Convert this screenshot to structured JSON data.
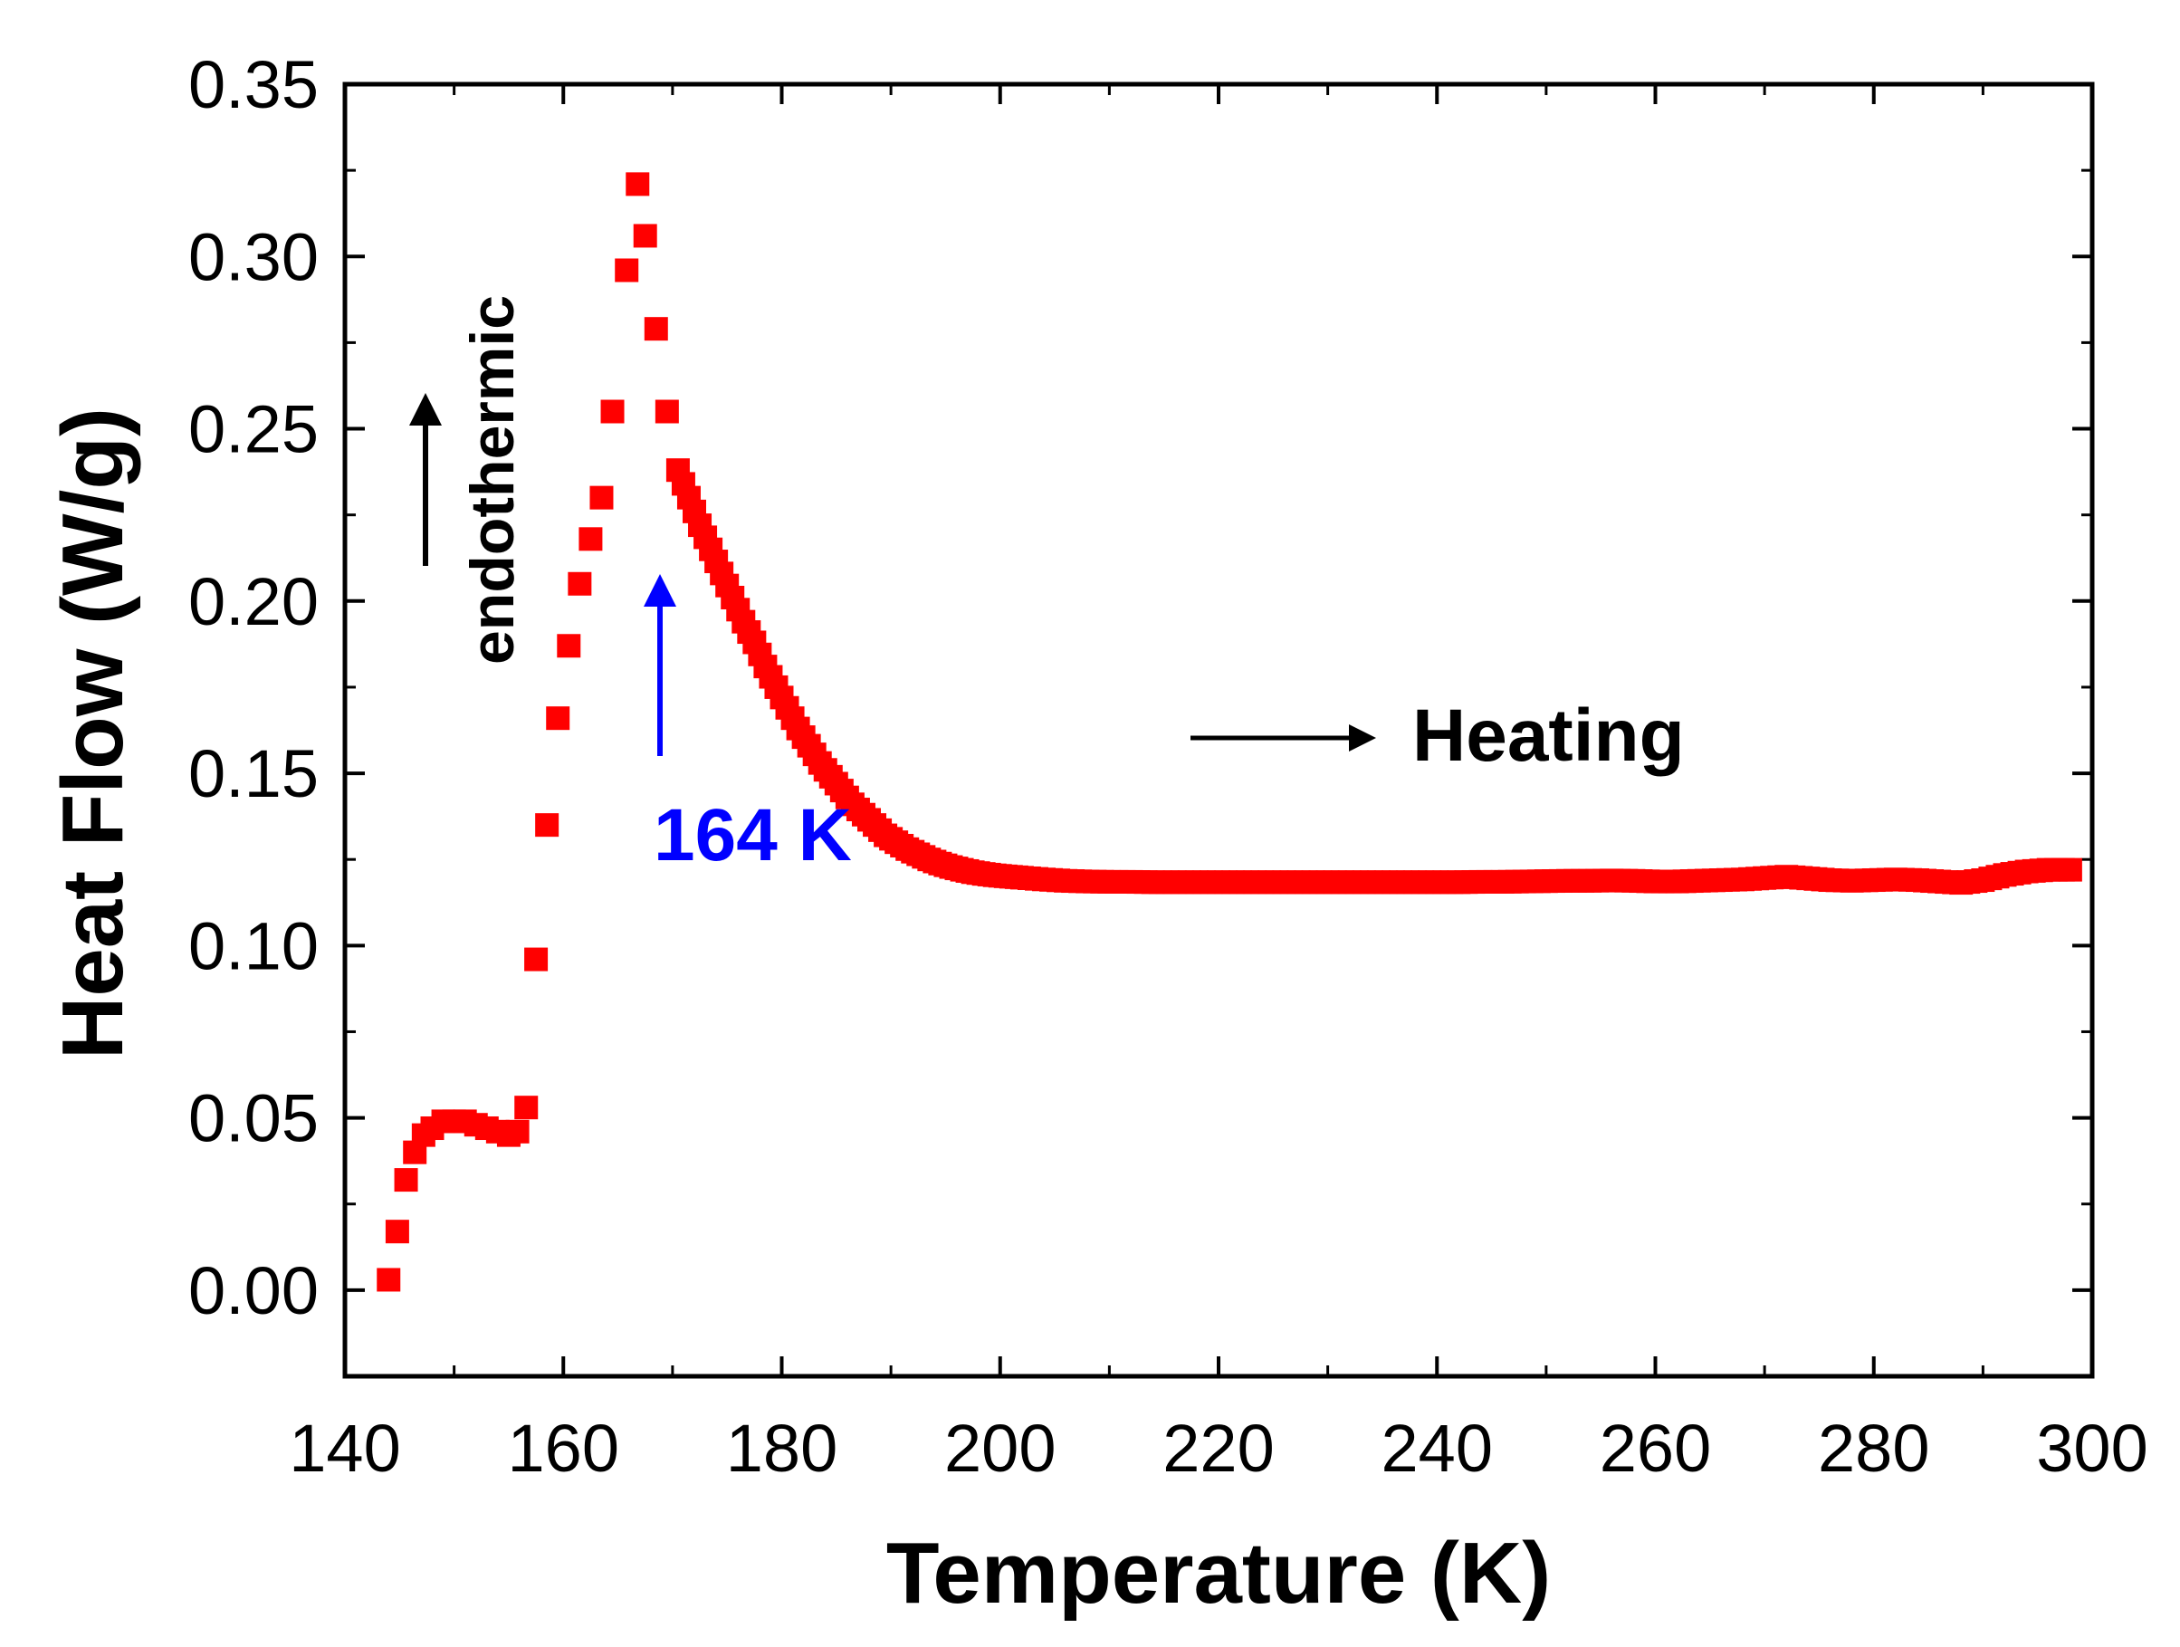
{
  "chart_data": {
    "type": "scatter",
    "title": "",
    "xlabel": "Temperature (K)",
    "ylabel": "Heat Flow (W/g)",
    "xlim": [
      140,
      300
    ],
    "ylim": [
      -0.025,
      0.35
    ],
    "xticks": [
      140,
      160,
      180,
      200,
      220,
      240,
      260,
      280,
      300
    ],
    "xtick_labels": [
      "140",
      "160",
      "180",
      "200",
      "220",
      "240",
      "260",
      "280",
      "300"
    ],
    "yticks": [
      0.0,
      0.05,
      0.1,
      0.15,
      0.2,
      0.25,
      0.3,
      0.35
    ],
    "ytick_labels": [
      "0.00",
      "0.05",
      "0.10",
      "0.15",
      "0.20",
      "0.25",
      "0.30",
      "0.35"
    ],
    "grid": false,
    "legend": null,
    "marker": "square",
    "color": "#ff0000",
    "series": [
      {
        "name": "Heat Flow",
        "x": [
          144,
          144.8,
          145.6,
          146.4,
          147.2,
          148,
          149,
          150,
          151,
          152,
          153,
          154,
          155,
          155.8,
          156.6,
          157.5,
          158.5,
          159.5,
          160.5,
          161.5,
          162.5,
          163.5,
          164.5,
          165.8,
          166.8,
          167.5,
          168.5,
          169.5,
          170.5,
          171.5,
          172.5,
          173.5,
          174.5,
          175.5,
          176.5,
          177.5,
          178.5,
          179.5,
          180.5,
          181.5,
          182.5,
          183.5,
          184.5,
          185.5,
          186.5,
          187.5,
          188.5,
          189.5,
          190.5,
          191.5,
          192.5,
          193.5,
          194.5,
          195.5,
          196.5,
          197.5,
          198.5,
          199.5,
          200.5,
          202,
          204,
          206,
          208,
          210,
          212,
          214,
          216,
          218,
          220,
          222,
          224,
          226,
          228,
          230,
          232,
          234,
          236,
          238,
          240,
          242,
          244,
          246,
          248,
          250,
          252,
          254,
          256,
          258,
          260,
          262,
          264,
          266,
          268,
          270,
          272,
          274,
          276,
          278,
          280,
          282,
          284,
          286,
          288,
          290,
          292,
          294,
          296,
          298
        ],
        "y": [
          0.003,
          0.017,
          0.032,
          0.04,
          0.045,
          0.047,
          0.049,
          0.049,
          0.049,
          0.048,
          0.047,
          0.046,
          0.045,
          0.046,
          0.053,
          0.096,
          0.135,
          0.166,
          0.187,
          0.205,
          0.218,
          0.23,
          0.255,
          0.296,
          0.321,
          0.306,
          0.279,
          0.255,
          0.238,
          0.23,
          0.222,
          0.215,
          0.208,
          0.201,
          0.194,
          0.188,
          0.181,
          0.175,
          0.169,
          0.163,
          0.158,
          0.153,
          0.149,
          0.145,
          0.141,
          0.138,
          0.135,
          0.132,
          0.13,
          0.128,
          0.1265,
          0.125,
          0.1238,
          0.1228,
          0.122,
          0.1213,
          0.1208,
          0.1204,
          0.1201,
          0.1197,
          0.1192,
          0.1188,
          0.1186,
          0.1185,
          0.1185,
          0.1184,
          0.1184,
          0.1184,
          0.1184,
          0.1184,
          0.1184,
          0.1184,
          0.1184,
          0.1184,
          0.1184,
          0.1184,
          0.1184,
          0.1184,
          0.1184,
          0.1184,
          0.1185,
          0.1185,
          0.1186,
          0.1187,
          0.1188,
          0.1188,
          0.1189,
          0.1188,
          0.1186,
          0.1186,
          0.1188,
          0.119,
          0.1192,
          0.1196,
          0.12,
          0.1195,
          0.119,
          0.1188,
          0.119,
          0.1192,
          0.119,
          0.1186,
          0.1182,
          0.119,
          0.1205,
          0.1215,
          0.122,
          0.122
        ]
      }
    ],
    "annotations": [
      {
        "text": "endothermic",
        "color": "#000000",
        "arrow": "up",
        "orientation": "vertical"
      },
      {
        "text": "164 K",
        "color": "#0000ff",
        "arrow": "up",
        "at_x": 168,
        "at_y": 0.205
      },
      {
        "text": "Heating",
        "color": "#000000",
        "arrow": "right"
      }
    ]
  }
}
